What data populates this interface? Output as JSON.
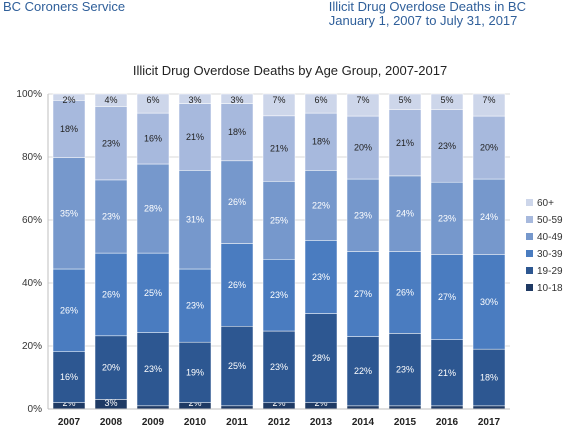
{
  "header": {
    "left": "BC Coroners Service",
    "right_line1": "Illicit Drug Overdose Deaths in BC",
    "right_line2": "January 1, 2007 to July 31, 2017"
  },
  "chart_data": {
    "type": "bar",
    "stacked": true,
    "percent_stacked": true,
    "title": "Illicit Drug Overdose Deaths by Age Group, 2007-2017",
    "xlabel": "",
    "ylabel": "",
    "ylim": [
      0,
      100
    ],
    "yticks": [
      "0%",
      "20%",
      "40%",
      "60%",
      "80%",
      "100%"
    ],
    "grid": true,
    "legend_position": "right",
    "categories": [
      "2007",
      "2008",
      "2009",
      "2010",
      "2011",
      "2012",
      "2013",
      "2014",
      "2015",
      "2016",
      "2017"
    ],
    "series": [
      {
        "name": "10-18",
        "color": "#1f3a64",
        "label_color": "#ffffff",
        "values": [
          2,
          3,
          1,
          2,
          1,
          2,
          2,
          1,
          1,
          1,
          1
        ],
        "labels": [
          "2%",
          "3%",
          "1%",
          "2%",
          "1%",
          "2%",
          "2%",
          "1%",
          "1%",
          "1%",
          "1%"
        ]
      },
      {
        "name": "19-29",
        "color": "#2d5791",
        "label_color": "#ffffff",
        "values": [
          16,
          20,
          23,
          19,
          25,
          23,
          28,
          22,
          23,
          21,
          18
        ],
        "labels": [
          "16%",
          "20%",
          "23%",
          "19%",
          "25%",
          "23%",
          "28%",
          "22%",
          "23%",
          "21%",
          "18%"
        ]
      },
      {
        "name": "30-39",
        "color": "#4a7cc0",
        "label_color": "#ffffff",
        "values": [
          26,
          26,
          25,
          23,
          26,
          23,
          23,
          27,
          26,
          27,
          30
        ],
        "labels": [
          "26%",
          "26%",
          "25%",
          "23%",
          "26%",
          "23%",
          "23%",
          "27%",
          "26%",
          "27%",
          "30%"
        ]
      },
      {
        "name": "40-49",
        "color": "#7698cc",
        "label_color": "#ffffff",
        "values": [
          35,
          23,
          28,
          31,
          26,
          25,
          22,
          23,
          24,
          23,
          24
        ],
        "labels": [
          "35%",
          "23%",
          "28%",
          "31%",
          "26%",
          "25%",
          "22%",
          "23%",
          "24%",
          "23%",
          "24%"
        ]
      },
      {
        "name": "50-59",
        "color": "#a7b9dd",
        "label_color": "#222222",
        "values": [
          18,
          23,
          16,
          21,
          18,
          21,
          18,
          20,
          21,
          23,
          20
        ],
        "labels": [
          "18%",
          "23%",
          "16%",
          "21%",
          "18%",
          "21%",
          "18%",
          "20%",
          "21%",
          "23%",
          "20%"
        ]
      },
      {
        "name": "60+",
        "color": "#cdd6ea",
        "label_color": "#222222",
        "values": [
          2,
          4,
          6,
          3,
          3,
          7,
          6,
          7,
          5,
          5,
          7
        ],
        "labels": [
          "2%",
          "4%",
          "6%",
          "3%",
          "3%",
          "7%",
          "6%",
          "7%",
          "5%",
          "5%",
          "7%"
        ]
      }
    ]
  }
}
